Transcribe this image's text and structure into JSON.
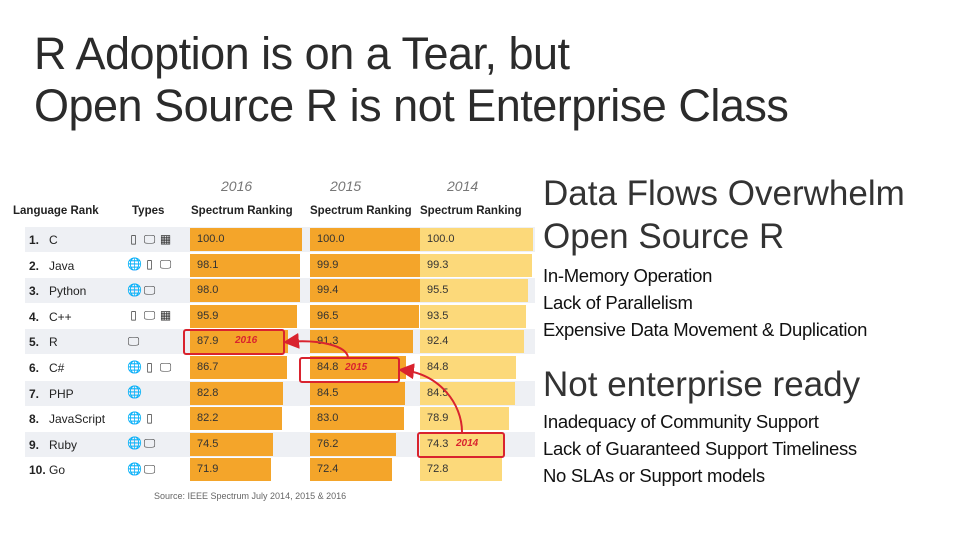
{
  "title": {
    "line1": "R Adoption is on a Tear, but",
    "line2": "Open Source R is not Enterprise Class"
  },
  "table": {
    "years": [
      "2016",
      "2015",
      "2014"
    ],
    "header_rank": "Language Rank",
    "header_types": "Types",
    "header_ranking": "Spectrum Ranking",
    "rows": [
      {
        "rank": "1.",
        "lang": "C",
        "icons": [
          "mobile-icon",
          "desktop-icon",
          "chip-icon"
        ],
        "v2016": "100.0",
        "v2015": "100.0",
        "v2014": "100.0",
        "p2016": 1.0,
        "p2015": 1.0,
        "p2014": 1.0
      },
      {
        "rank": "2.",
        "lang": "Java",
        "icons": [
          "globe-icon",
          "mobile-icon",
          "desktop-icon"
        ],
        "v2016": "98.1",
        "v2015": "99.9",
        "v2014": "99.3",
        "p2016": 0.981,
        "p2015": 0.999,
        "p2014": 0.993
      },
      {
        "rank": "3.",
        "lang": "Python",
        "icons": [
          "globe-icon",
          "desktop-icon"
        ],
        "v2016": "98.0",
        "v2015": "99.4",
        "v2014": "95.5",
        "p2016": 0.98,
        "p2015": 0.994,
        "p2014": 0.955
      },
      {
        "rank": "4.",
        "lang": "C++",
        "icons": [
          "mobile-icon",
          "desktop-icon",
          "chip-icon"
        ],
        "v2016": "95.9",
        "v2015": "96.5",
        "v2014": "93.5",
        "p2016": 0.959,
        "p2015": 0.965,
        "p2014": 0.935
      },
      {
        "rank": "5.",
        "lang": "R",
        "icons": [
          "desktop-icon"
        ],
        "v2016": "87.9",
        "v2015": "91.3",
        "v2014": "92.4",
        "p2016": 0.879,
        "p2015": 0.913,
        "p2014": 0.924
      },
      {
        "rank": "6.",
        "lang": "C#",
        "icons": [
          "globe-icon",
          "mobile-icon",
          "desktop-icon"
        ],
        "v2016": "86.7",
        "v2015": "84.8",
        "v2014": "84.8",
        "p2016": 0.867,
        "p2015": 0.848,
        "p2014": 0.848
      },
      {
        "rank": "7.",
        "lang": "PHP",
        "icons": [
          "globe-icon"
        ],
        "v2016": "82.8",
        "v2015": "84.5",
        "v2014": "84.5",
        "p2016": 0.828,
        "p2015": 0.845,
        "p2014": 0.845
      },
      {
        "rank": "8.",
        "lang": "JavaScript",
        "icons": [
          "globe-icon",
          "mobile-icon"
        ],
        "v2016": "82.2",
        "v2015": "83.0",
        "v2014": "78.9",
        "p2016": 0.822,
        "p2015": 0.83,
        "p2014": 0.789
      },
      {
        "rank": "9.",
        "lang": "Ruby",
        "icons": [
          "globe-icon",
          "desktop-icon"
        ],
        "v2016": "74.5",
        "v2015": "76.2",
        "v2014": "74.3",
        "p2016": 0.745,
        "p2015": 0.762,
        "p2014": 0.743
      },
      {
        "rank": "10.",
        "lang": "Go",
        "icons": [
          "globe-icon",
          "desktop-icon"
        ],
        "v2016": "71.9",
        "v2015": "72.4",
        "v2014": "72.8",
        "p2016": 0.719,
        "p2015": 0.724,
        "p2014": 0.728
      }
    ],
    "highlights": {
      "label2016": "2016",
      "label2015": "2015",
      "label2014": "2014"
    },
    "source": "Source: IEEE Spectrum July 2014, 2015 & 2016",
    "colors": {
      "bar2016": "#f4a52a",
      "bar2015": "#f4a52a",
      "bar2014": "#fcd97a",
      "highlight": "#d9232e"
    }
  },
  "right": {
    "heading1_line1": "Data Flows Overwhelm",
    "heading1_line2": "Open Source R",
    "list1": [
      "In-Memory Operation",
      "Lack of Parallelism",
      "Expensive Data Movement & Duplication"
    ],
    "heading2": "Not enterprise ready",
    "list2": [
      "Inadequacy of Community Support",
      "Lack of Guaranteed Support Timeliness",
      "No SLAs or Support models"
    ]
  }
}
